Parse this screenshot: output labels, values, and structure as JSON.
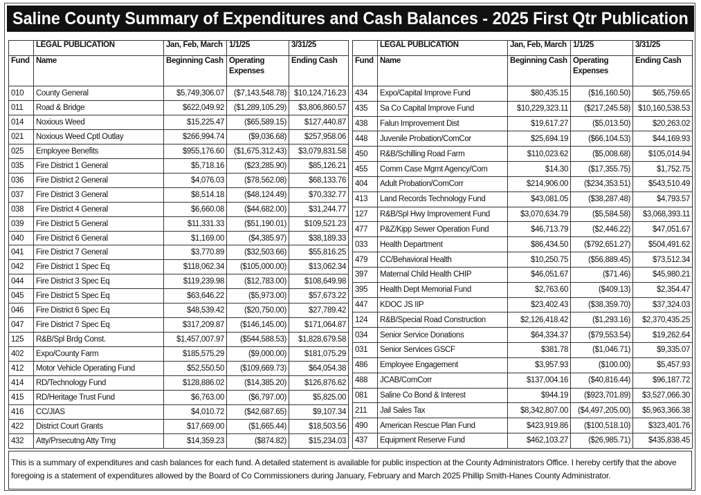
{
  "title": "Saline County Summary of Expenditures and Cash Balances - 2025 First Qtr Publication",
  "tables": [
    {
      "header_top": [
        "LEGAL PUBLICATION",
        "Jan, Feb, March",
        "1/1/25",
        "3/31/25"
      ],
      "header": [
        "Fund",
        "Name",
        "Beginning Cash",
        "Operating Expenses",
        "Ending Cash"
      ],
      "rows": [
        [
          "010",
          "County General",
          "$5,749,306.07",
          "($7,143,548.78)",
          "$10,124,716.23"
        ],
        [
          "011",
          "Road & Bridge",
          "$622,049.92",
          "($1,289,105.29)",
          "$3,806,860.57"
        ],
        [
          "014",
          "Noxious Weed",
          "$15,225.47",
          "($65,589.15)",
          "$127,440.87"
        ],
        [
          "021",
          "Noxious Weed Cptl Outlay",
          "$266,994.74",
          "($9,036.68)",
          "$257,958.06"
        ],
        [
          "025",
          "Employee Benefits",
          "$955,176.60",
          "($1,675,312.43)",
          "$3,079,831.58"
        ],
        [
          "035",
          "Fire District 1 General",
          "$5,718.16",
          "($23,285.90)",
          "$85,126.21"
        ],
        [
          "036",
          "Fire District 2 General",
          "$4,076.03",
          "($78,562.08)",
          "$68,133.76"
        ],
        [
          "037",
          "Fire District 3 General",
          "$8,514.18",
          "($48,124.49)",
          "$70,332.77"
        ],
        [
          "038",
          "Fire District 4 General",
          "$6,660.08",
          "($44,682.00)",
          "$31,244.77"
        ],
        [
          "039",
          "Fire District 5 General",
          "$11,331.33",
          "($51,190.01)",
          "$109,521.23"
        ],
        [
          "040",
          "Fire District 6 General",
          "$1,169.00",
          "($4,385.97)",
          "$38,189.33"
        ],
        [
          "041",
          "Fire District 7 General",
          "$3,770.89",
          "($32,503.66)",
          "$55,816.25"
        ],
        [
          "042",
          "Fire District 1 Spec Eq",
          "$118,062.34",
          "($105,000.00)",
          "$13,062.34"
        ],
        [
          "044",
          "Fire District 3 Spec Eq",
          "$119,239.98",
          "($12,783.00)",
          "$108,649.98"
        ],
        [
          "045",
          "Fire District 5 Spec Eq",
          "$63,646.22",
          "($5,973.00)",
          "$57,673.22"
        ],
        [
          "046",
          "Fire District 6 Spec Eq",
          "$48,539.42",
          "($20,750.00)",
          "$27,789.42"
        ],
        [
          "047",
          "Fire District 7 Spec Eq",
          "$317,209.87",
          "($146,145.00)",
          "$171,064.87"
        ],
        [
          "125",
          "R&B/Spl Brdg Const.",
          "$1,457,007.97",
          "($544,588.53)",
          "$1,828,679.58"
        ],
        [
          "402",
          "Expo/County Farm",
          "$185,575.29",
          "($9,000.00)",
          "$181,075.29"
        ],
        [
          "412",
          "Motor Vehicle Operating Fund",
          "$52,550.50",
          "($109,669.73)",
          "$64,054.38"
        ],
        [
          "414",
          "RD/Technology Fund",
          "$128,886.02",
          "($14,385.20)",
          "$126,876.62"
        ],
        [
          "415",
          "RD/Heritage Trust Fund",
          "$6,763.00",
          "($6,797.00)",
          "$5,825.00"
        ],
        [
          "416",
          "CC/JIAS",
          "$4,010.72",
          "($42,687.65)",
          "$9,107.34"
        ],
        [
          "422",
          "District Court Grants",
          "$17,669.00",
          "($1,665.44)",
          "$18,503.56"
        ],
        [
          "432",
          "Atty/Prsecutng Atty Trng",
          "$14,359.23",
          "($874.82)",
          "$15,234.03"
        ]
      ]
    },
    {
      "header_top": [
        "LEGAL PUBLICATION",
        "Jan, Feb, March",
        "1/1/25",
        "3/31/25"
      ],
      "header": [
        "Fund",
        "Name",
        "Beginning Cash",
        "Operating Expenses",
        "Ending Cash"
      ],
      "rows": [
        [
          "434",
          "Expo/Capital Improve Fund",
          "$80,435.15",
          "($16,160.50)",
          "$65,759.65"
        ],
        [
          "435",
          "Sa Co Capital Improve Fund",
          "$10,229,323.11",
          "($217,245.58)",
          "$10,160,538.53"
        ],
        [
          "438",
          "Falun Improvement Dist",
          "$19,617.27",
          "($5,013.50)",
          "$20,263.02"
        ],
        [
          "448",
          "Juvenile Probation/ComCor",
          "$25,694.19",
          "($66,104.53)",
          "$44,169.93"
        ],
        [
          "450",
          "R&B/Schilling Road Farm",
          "$110,023.62",
          "($5,008.68)",
          "$105,014.94"
        ],
        [
          "455",
          "Comm Case Mgmt Agency/Com",
          "$14.30",
          "($17,355.75)",
          "$1,752.75"
        ],
        [
          "404",
          "Adult Probation/ComCorr",
          "$214,906.00",
          "($234,353.51)",
          "$543,510.49"
        ],
        [
          "413",
          "Land Records Technology Fund",
          "$43,081.05",
          "($38,287.48)",
          "$4,793.57"
        ],
        [
          "127",
          "R&B/Spl Hwy Improvement Fund",
          "$3,070,634.79",
          "($5,584.58)",
          "$3,068,393.11"
        ],
        [
          "477",
          "P&Z/Kipp Sewer Operation Fund",
          "$46,713.79",
          "($2,446.22)",
          "$47,051.67"
        ],
        [
          "033",
          "Health Department",
          "$86,434.50",
          "($792,651.27)",
          "$504,491.62"
        ],
        [
          "479",
          "CC/Behavioral Health",
          "$10,250.75",
          "($56,889.45)",
          "$73,512.34"
        ],
        [
          "397",
          "Maternal Child Health CHIP",
          "$46,051.67",
          "($71.46)",
          "$45,980.21"
        ],
        [
          "395",
          "Health Dept Memorial Fund",
          "$2,763.60",
          "($409.13)",
          "$2,354.47"
        ],
        [
          "447",
          "KDOC JS IIP",
          "$23,402.43",
          "($38,359.70)",
          "$37,324.03"
        ],
        [
          "124",
          "R&B/Special Road Construction",
          "$2,126,418.42",
          "($1,293.16)",
          "$2,370,435.25"
        ],
        [
          "034",
          "Senior Service Donations",
          "$64,334.37",
          "($79,553.54)",
          "$19,262.64"
        ],
        [
          "031",
          "Senior Services GSCF",
          "$381.78",
          "($1,046.71)",
          "$9,335.07"
        ],
        [
          "486",
          "Employee Engagement",
          "$3,957.93",
          "($100.00)",
          "$5,457.93"
        ],
        [
          "488",
          "JCAB/ComCorr",
          "$137,004.16",
          "($40,816.44)",
          "$96,187.72"
        ],
        [
          "081",
          "Saline Co Bond & Interest",
          "$944.19",
          "($923,701.89)",
          "$3,527,066.30"
        ],
        [
          "211",
          "Jail Sales Tax",
          "$8,342,807.00",
          "($4,497,205.00)",
          "$5,963,366.38"
        ],
        [
          "490",
          "American Rescue Plan Fund",
          "$423,919.86",
          "($100,518.10)",
          "$323,401.76"
        ],
        [
          "437",
          "Equipment Reserve Fund",
          "$462,103.27",
          "($26,985.71)",
          "$435,838.45"
        ]
      ]
    }
  ],
  "footer": "This is a summary of expenditures and cash balances for each fund.  A detailed statement  is available for public inspection at the County Administrators Office. I hereby certify that the above foregoing is a statement of expenditures allowed by the Board of Co Commissioners during January, February and March 2025 Phillip Smith-Hanes County Administrator."
}
